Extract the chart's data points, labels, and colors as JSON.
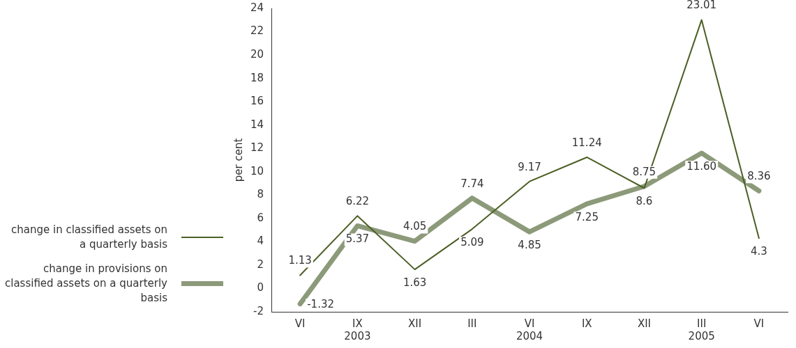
{
  "chart_data": {
    "type": "line",
    "ylabel": "per cent",
    "categories": [
      "VI",
      "IX\n2003",
      "XII",
      "III",
      "VI\n2004",
      "IX",
      "XII",
      "III\n2005",
      "VI"
    ],
    "series": [
      {
        "name": "change in classified assets on a quarterly basis",
        "color": "#4b5e24",
        "values": [
          1.13,
          6.22,
          1.63,
          5.09,
          9.17,
          11.24,
          8.6,
          23.01,
          4.3
        ],
        "value_labels": [
          "1.13",
          "6.22",
          "1.63",
          "5.09",
          "9.17",
          "11.24",
          "8.6",
          "23.01",
          "4.3"
        ]
      },
      {
        "name": "change in provisions on classified assets on a quarterly basis",
        "color": "#8c9a7a",
        "values": [
          -1.32,
          5.37,
          4.05,
          7.74,
          4.85,
          7.25,
          8.75,
          11.6,
          8.36
        ],
        "value_labels": [
          "-1.32",
          "5.37",
          "4.05",
          "7.74",
          "4.85",
          "7.25",
          "8.75",
          "11.60",
          "8.36"
        ]
      }
    ],
    "ylim": [
      -2,
      24
    ],
    "yticks": [
      -2,
      0,
      2,
      4,
      6,
      8,
      10,
      12,
      14,
      16,
      18,
      20,
      22,
      24
    ],
    "grid": false,
    "legend": "left",
    "marker": "none",
    "line_style": "solid"
  }
}
